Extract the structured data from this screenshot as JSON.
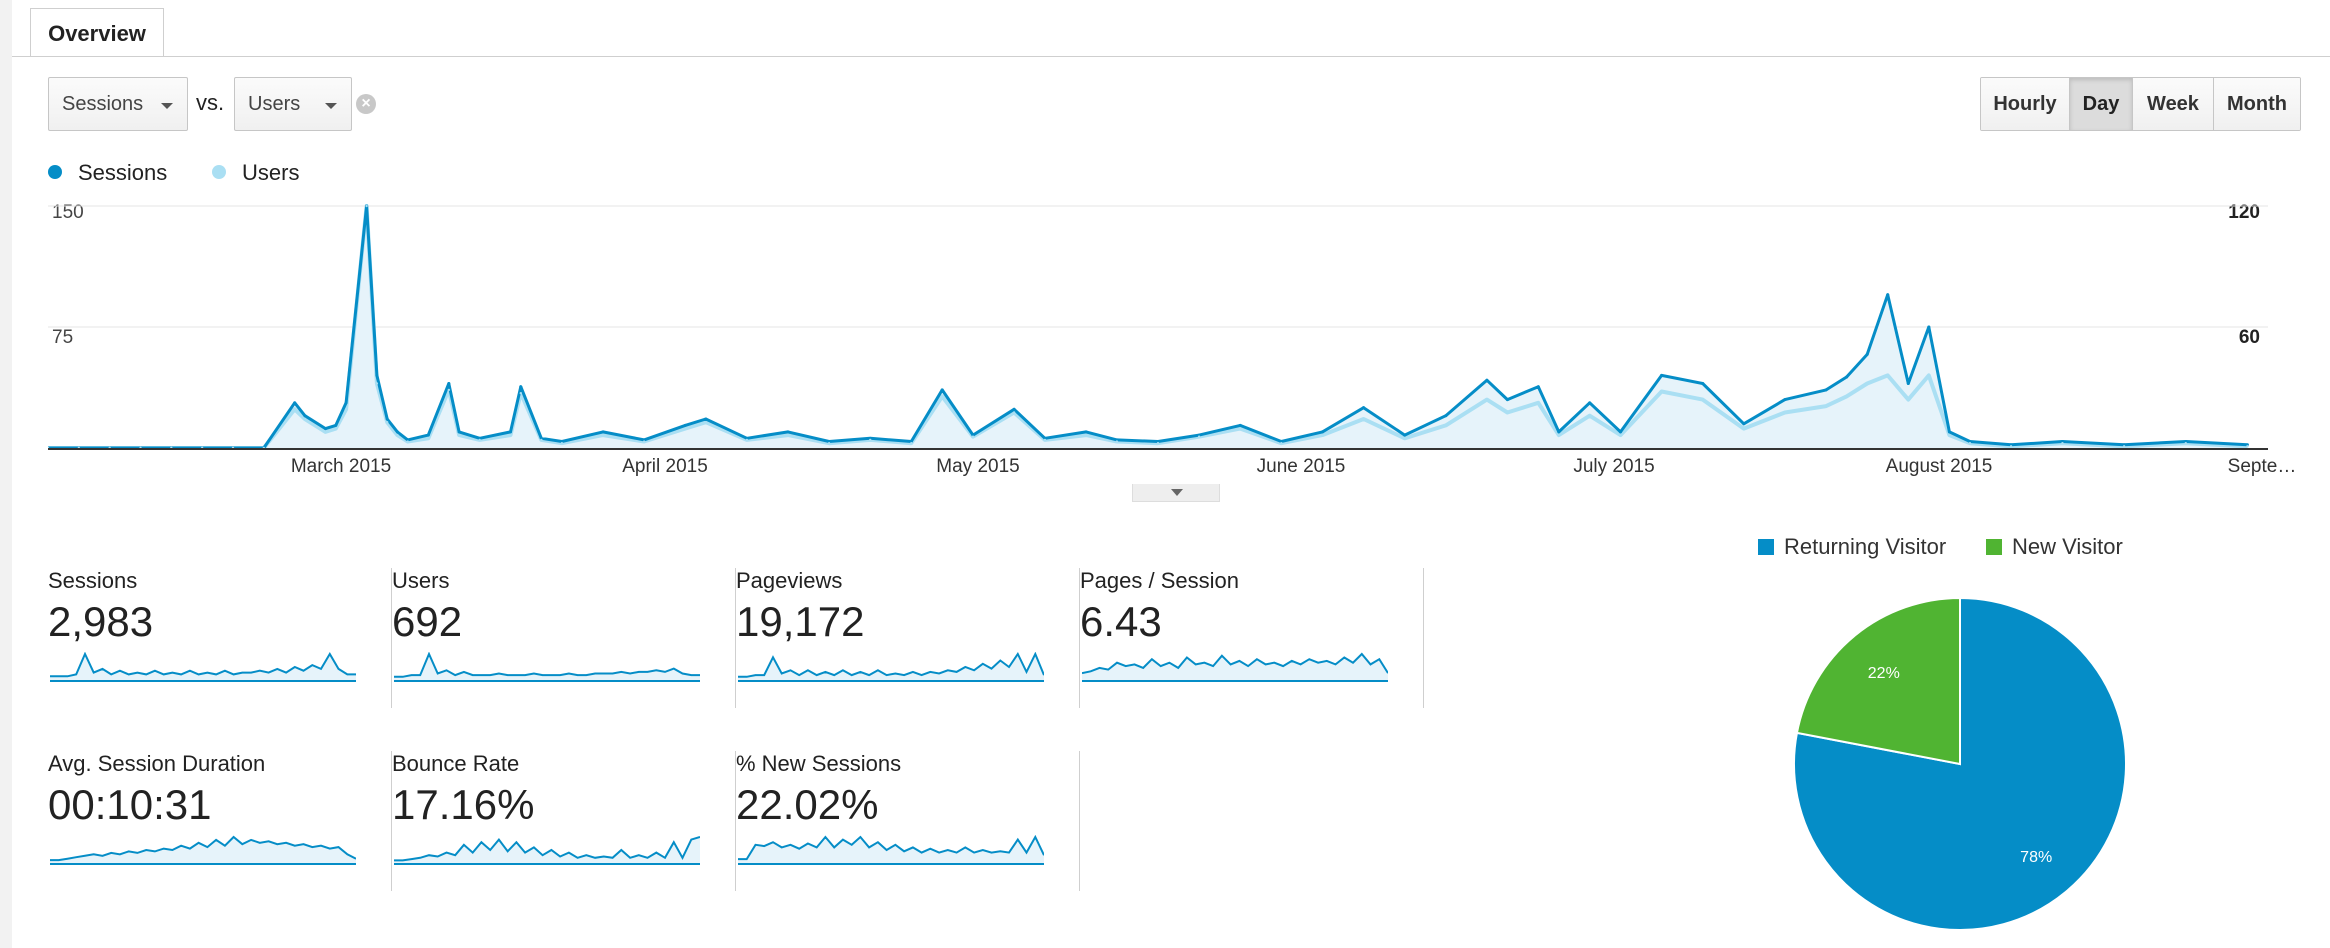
{
  "tab": {
    "label": "Overview"
  },
  "controls": {
    "metric1": "Sessions",
    "vs_label": "vs.",
    "metric2": "Users",
    "remove_icon": "close-circle-icon",
    "granularity": [
      "Hourly",
      "Day",
      "Week",
      "Month"
    ],
    "active_granularity": "Day"
  },
  "legend": {
    "series1": "Sessions",
    "series2": "Users"
  },
  "colors": {
    "sessions": "#058dc7",
    "users": "#aadff3",
    "returning": "#058dc7",
    "new": "#50b432"
  },
  "chart_data": [
    {
      "type": "line",
      "x": [
        "2015-02-01",
        "2015-02-04",
        "2015-02-07",
        "2015-02-10",
        "2015-02-13",
        "2015-02-16",
        "2015-02-19",
        "2015-02-22",
        "2015-02-25",
        "2015-02-26",
        "2015-02-28",
        "2015-03-01",
        "2015-03-02",
        "2015-03-04",
        "2015-03-05",
        "2015-03-06",
        "2015-03-07",
        "2015-03-08",
        "2015-03-10",
        "2015-03-12",
        "2015-03-13",
        "2015-03-15",
        "2015-03-18",
        "2015-03-19",
        "2015-03-21",
        "2015-03-23",
        "2015-03-27",
        "2015-03-31",
        "2015-04-04",
        "2015-04-06",
        "2015-04-10",
        "2015-04-14",
        "2015-04-18",
        "2015-04-22",
        "2015-04-26",
        "2015-04-29",
        "2015-05-02",
        "2015-05-06",
        "2015-05-09",
        "2015-05-13",
        "2015-05-16",
        "2015-05-20",
        "2015-05-24",
        "2015-05-28",
        "2015-06-01",
        "2015-06-05",
        "2015-06-09",
        "2015-06-13",
        "2015-06-17",
        "2015-06-21",
        "2015-06-23",
        "2015-06-26",
        "2015-06-28",
        "2015-07-01",
        "2015-07-04",
        "2015-07-08",
        "2015-07-12",
        "2015-07-16",
        "2015-07-20",
        "2015-07-24",
        "2015-07-26",
        "2015-07-28",
        "2015-07-30",
        "2015-08-01",
        "2015-08-03",
        "2015-08-05",
        "2015-08-07",
        "2015-08-11",
        "2015-08-16",
        "2015-08-22",
        "2015-08-28",
        "2015-09-03"
      ],
      "series": [
        {
          "name": "Sessions",
          "values": [
            0,
            0,
            0,
            0,
            0,
            0,
            0,
            0,
            28,
            20,
            12,
            14,
            28,
            150,
            45,
            18,
            10,
            5,
            8,
            40,
            10,
            6,
            10,
            38,
            6,
            4,
            10,
            5,
            14,
            18,
            6,
            10,
            4,
            6,
            4,
            36,
            8,
            24,
            6,
            10,
            5,
            4,
            8,
            14,
            4,
            10,
            25,
            8,
            20,
            42,
            30,
            38,
            10,
            28,
            10,
            45,
            40,
            15,
            30,
            36,
            44,
            58,
            95,
            40,
            75,
            10,
            4,
            2,
            4,
            2,
            4,
            2
          ]
        },
        {
          "name": "Users",
          "values": [
            0,
            0,
            0,
            0,
            0,
            0,
            0,
            0,
            24,
            18,
            10,
            12,
            24,
            150,
            40,
            16,
            8,
            4,
            6,
            36,
            8,
            5,
            8,
            34,
            5,
            3,
            8,
            4,
            12,
            16,
            5,
            8,
            3,
            5,
            3,
            32,
            7,
            22,
            5,
            8,
            4,
            3,
            7,
            12,
            3,
            8,
            18,
            6,
            14,
            30,
            22,
            28,
            8,
            20,
            8,
            35,
            30,
            12,
            22,
            26,
            32,
            40,
            45,
            30,
            45,
            8,
            3,
            1,
            3,
            1,
            3,
            1
          ]
        }
      ],
      "ylim_left": [
        0,
        150
      ],
      "yticks_left": [
        "150",
        "75"
      ],
      "ylim_right": [
        0,
        120
      ],
      "yticks_right": [
        "120",
        "60"
      ],
      "xticks": [
        "March 2015",
        "April 2015",
        "May 2015",
        "June 2015",
        "July 2015",
        "August 2015",
        "Septe…"
      ],
      "grid": true,
      "legend": "top-left"
    },
    {
      "type": "pie",
      "categories": [
        "Returning Visitor",
        "New Visitor"
      ],
      "values": [
        78,
        22
      ],
      "labels": [
        "78%",
        "22%"
      ],
      "legend": "top"
    }
  ],
  "metrics": [
    {
      "label": "Sessions",
      "value": "2,983",
      "spark": [
        2,
        2,
        2,
        3,
        14,
        4,
        6,
        3,
        5,
        3,
        4,
        3,
        5,
        3,
        4,
        3,
        5,
        3,
        4,
        3,
        5,
        3,
        4,
        4,
        5,
        4,
        6,
        4,
        7,
        5,
        8,
        6,
        14,
        6,
        3,
        3
      ]
    },
    {
      "label": "Users",
      "value": "692",
      "spark": [
        2,
        2,
        3,
        3,
        16,
        4,
        6,
        3,
        5,
        3,
        3,
        3,
        4,
        3,
        3,
        3,
        4,
        3,
        3,
        3,
        4,
        3,
        3,
        4,
        4,
        4,
        5,
        4,
        5,
        5,
        6,
        5,
        7,
        4,
        3,
        3
      ]
    },
    {
      "label": "Pageviews",
      "value": "19,172",
      "spark": [
        2,
        2,
        3,
        3,
        14,
        4,
        6,
        3,
        6,
        3,
        5,
        3,
        6,
        3,
        5,
        3,
        6,
        3,
        4,
        3,
        5,
        3,
        5,
        4,
        6,
        5,
        8,
        6,
        10,
        7,
        12,
        8,
        16,
        5,
        16,
        3
      ]
    },
    {
      "label": "Pages / Session",
      "value": "6.43",
      "spark": [
        4,
        5,
        7,
        6,
        10,
        8,
        9,
        7,
        12,
        8,
        10,
        7,
        13,
        9,
        10,
        8,
        14,
        9,
        11,
        8,
        12,
        9,
        10,
        8,
        11,
        9,
        12,
        10,
        11,
        9,
        13,
        10,
        15,
        9,
        12,
        4
      ]
    },
    {
      "label": "Avg. Session Duration",
      "value": "00:10:31",
      "spark": [
        2,
        2,
        3,
        4,
        5,
        6,
        5,
        7,
        6,
        8,
        7,
        9,
        8,
        10,
        9,
        12,
        10,
        14,
        11,
        16,
        12,
        18,
        13,
        16,
        14,
        15,
        13,
        14,
        12,
        13,
        11,
        12,
        10,
        11,
        6,
        3
      ]
    },
    {
      "label": "Bounce Rate",
      "value": "17.16%",
      "spark": [
        2,
        2,
        3,
        4,
        6,
        5,
        8,
        6,
        14,
        8,
        16,
        10,
        18,
        9,
        16,
        8,
        12,
        6,
        10,
        5,
        8,
        4,
        6,
        4,
        5,
        4,
        10,
        4,
        6,
        4,
        8,
        4,
        16,
        4,
        18,
        20
      ]
    },
    {
      "label": "% New Sessions",
      "value": "22.02%",
      "spark": [
        3,
        3,
        14,
        13,
        16,
        12,
        14,
        11,
        15,
        12,
        20,
        12,
        18,
        14,
        20,
        12,
        16,
        10,
        14,
        9,
        12,
        8,
        11,
        8,
        10,
        8,
        12,
        8,
        10,
        8,
        9,
        8,
        18,
        8,
        20,
        6
      ]
    }
  ]
}
